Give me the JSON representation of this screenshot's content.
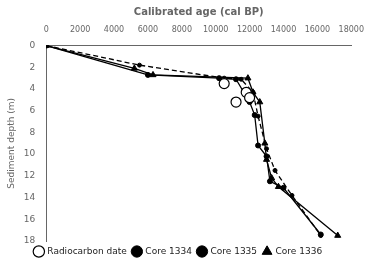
{
  "chart_data": {
    "type": "line",
    "xlabel": "Calibrated age (cal BP)",
    "ylabel": "Sediment depth (m)",
    "xlim": [
      0,
      18000
    ],
    "ylim": [
      18,
      0
    ],
    "xticks": [
      0,
      2000,
      4000,
      6000,
      8000,
      10000,
      12000,
      14000,
      16000,
      18000
    ],
    "yticks": [
      0,
      2,
      4,
      6,
      8,
      10,
      12,
      14,
      16,
      18
    ],
    "grid": false,
    "legend": "bottom",
    "series": [
      {
        "name": "Core 1334",
        "color": "black",
        "line_style": "dashed",
        "marker": "point",
        "x": [
          0,
          5500,
          10500,
          11500,
          12200,
          12500,
          13000,
          13500,
          14500,
          16200
        ],
        "values": [
          0,
          1.8,
          3.0,
          3.1,
          4.3,
          6.5,
          9.5,
          11.5,
          13.8,
          17.5
        ]
      },
      {
        "name": "Core 1335",
        "color": "black",
        "line_style": "solid",
        "marker": "circle",
        "x": [
          0,
          6000,
          10200,
          11200,
          12000,
          12300,
          12500,
          13000,
          13200,
          14000,
          16200
        ],
        "values": [
          0,
          2.7,
          3.0,
          3.1,
          5.2,
          6.4,
          9.2,
          10.2,
          12.5,
          13.1,
          17.4
        ]
      },
      {
        "name": "Core 1336",
        "color": "black",
        "line_style": "solid",
        "marker": "triangle",
        "x": [
          0,
          5200,
          6300,
          11900,
          12200,
          12600,
          12900,
          13000,
          13300,
          13700,
          17200
        ],
        "values": [
          0,
          2.1,
          2.7,
          3.0,
          4.3,
          5.2,
          9.0,
          10.5,
          12.2,
          13.0,
          17.5
        ]
      },
      {
        "name": "Radiocarbon date",
        "type": "scatter",
        "color": "black",
        "line_style": "none",
        "marker": "open_circle",
        "x": [
          10500,
          11200,
          11800,
          12000
        ],
        "values": [
          3.5,
          5.2,
          4.3,
          4.8
        ]
      }
    ]
  }
}
